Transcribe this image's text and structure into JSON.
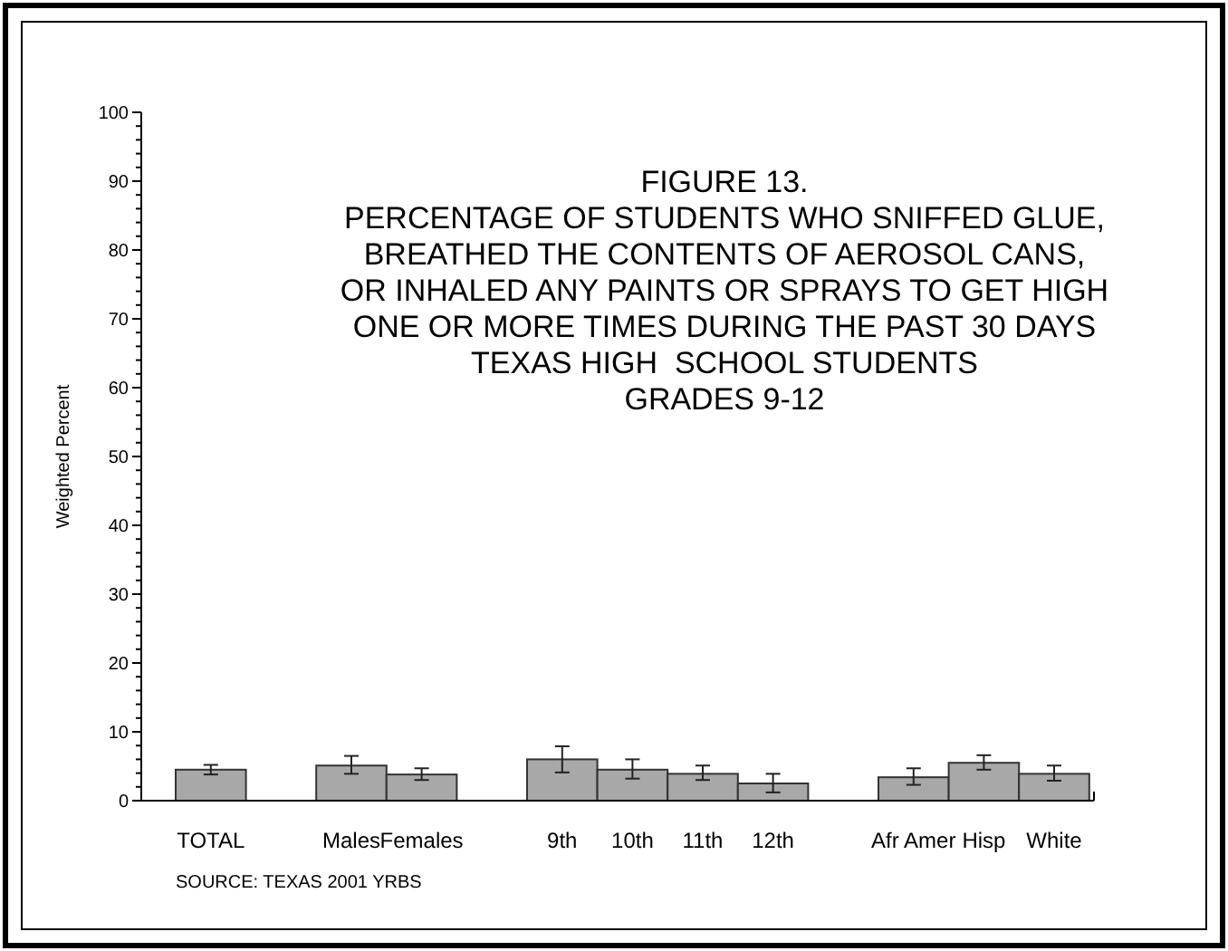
{
  "chart_data": {
    "type": "bar",
    "title": "FIGURE 13.\nPERCENTAGE OF STUDENTS WHO SNIFFED GLUE,\nBREATHED THE CONTENTS OF AEROSOL CANS,\nOR INHALED ANY PAINTS OR SPRAYS TO GET HIGH\nONE OR MORE TIMES DURING THE PAST 30 DAYS\nTEXAS HIGH  SCHOOL STUDENTS\nGRADES 9-12",
    "ylabel": "Weighted Percent",
    "annotations": [
      "SOURCE: TEXAS 2001 YRBS"
    ],
    "categories": [
      "TOTAL",
      null,
      "Males",
      "Females",
      null,
      "9th",
      "10th",
      "11th",
      "12th",
      null,
      "Afr Amer",
      "Hisp",
      "White"
    ],
    "values": [
      4.5,
      null,
      5.1,
      3.8,
      null,
      6.0,
      4.5,
      3.9,
      2.5,
      null,
      3.4,
      5.5,
      3.9
    ],
    "errors": [
      [
        3.8,
        5.2
      ],
      null,
      [
        3.9,
        6.5
      ],
      [
        3.0,
        4.7
      ],
      null,
      [
        4.1,
        7.9
      ],
      [
        3.2,
        6.0
      ],
      [
        3.0,
        5.1
      ],
      [
        1.2,
        3.9
      ],
      null,
      [
        2.3,
        4.7
      ],
      [
        4.5,
        6.6
      ],
      [
        2.9,
        5.1
      ]
    ],
    "color": "#a8a8a8",
    "ylim": [
      0,
      100
    ],
    "yticks": [
      0,
      {
        "value": 2,
        "label": null
      },
      {
        "value": 4,
        "label": null
      },
      {
        "value": 6,
        "label": null
      },
      {
        "value": 8,
        "label": null
      },
      10,
      {
        "value": 12,
        "label": null
      },
      {
        "value": 14,
        "label": null
      },
      {
        "value": 16,
        "label": null
      },
      {
        "value": 18,
        "label": null
      },
      20,
      {
        "value": 22,
        "label": null
      },
      {
        "value": 24,
        "label": null
      },
      {
        "value": 26,
        "label": null
      },
      {
        "value": 28,
        "label": null
      },
      30,
      {
        "value": 32,
        "label": null
      },
      {
        "value": 34,
        "label": null
      },
      {
        "value": 36,
        "label": null
      },
      {
        "value": 38,
        "label": null
      },
      40,
      {
        "value": 42,
        "label": null
      },
      {
        "value": 44,
        "label": null
      },
      {
        "value": 46,
        "label": null
      },
      {
        "value": 48,
        "label": null
      },
      50,
      {
        "value": 52,
        "label": null
      },
      {
        "value": 54,
        "label": null
      },
      {
        "value": 56,
        "label": null
      },
      {
        "value": 58,
        "label": null
      },
      60,
      {
        "value": 62,
        "label": null
      },
      {
        "value": 64,
        "label": null
      },
      {
        "value": 66,
        "label": null
      },
      {
        "value": 68,
        "label": null
      },
      70,
      {
        "value": 72,
        "label": null
      },
      {
        "value": 74,
        "label": null
      },
      {
        "value": 76,
        "label": null
      },
      {
        "value": 78,
        "label": null
      },
      80,
      {
        "value": 82,
        "label": null
      },
      {
        "value": 84,
        "label": null
      },
      {
        "value": 86,
        "label": null
      },
      {
        "value": 88,
        "label": null
      },
      90,
      {
        "value": 92,
        "label": null
      },
      {
        "value": 94,
        "label": null
      },
      {
        "value": 96,
        "label": null
      },
      {
        "value": 98,
        "label": null
      },
      100
    ]
  }
}
